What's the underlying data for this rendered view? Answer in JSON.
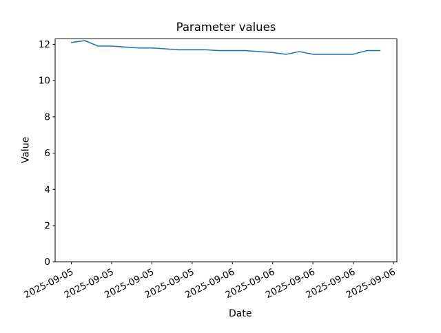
{
  "figure": {
    "background": "#ffffff"
  },
  "chart_data": {
    "type": "line",
    "title": "Parameter values",
    "xlabel": "Date",
    "ylabel": "Value",
    "grid": false,
    "legend": null,
    "line_color": "#1f77b4",
    "axis_color": "#000000",
    "text_color": "#000000",
    "ylim": [
      0,
      12.3
    ],
    "xlim_hours": [
      -1.21,
      24.26
    ],
    "y_ticks": [
      0,
      2,
      4,
      6,
      8,
      10,
      12
    ],
    "x_tick_hours": [
      0,
      3,
      6,
      9,
      12,
      15,
      18,
      21,
      24
    ],
    "x_tick_labels": [
      "2025-09-05",
      "2025-09-05",
      "2025-09-05",
      "2025-09-05",
      "2025-09-06",
      "2025-09-06",
      "2025-09-06",
      "2025-09-06",
      "2025-09-06"
    ],
    "x_tick_rotation_deg": 27,
    "x_hours": [
      0,
      1,
      2,
      3,
      4,
      5,
      6,
      7,
      8,
      9,
      10,
      11,
      12,
      13,
      14,
      15,
      16,
      17,
      18,
      19,
      20,
      21,
      22,
      23
    ],
    "series": [
      {
        "name": "Parameter values",
        "color": "#1f77b4",
        "values": [
          12.1,
          12.2,
          11.9,
          11.9,
          11.85,
          11.8,
          11.8,
          11.75,
          11.7,
          11.7,
          11.7,
          11.65,
          11.65,
          11.65,
          11.6,
          11.55,
          11.45,
          11.6,
          11.45,
          11.45,
          11.45,
          11.45,
          11.65,
          11.65
        ]
      }
    ]
  }
}
